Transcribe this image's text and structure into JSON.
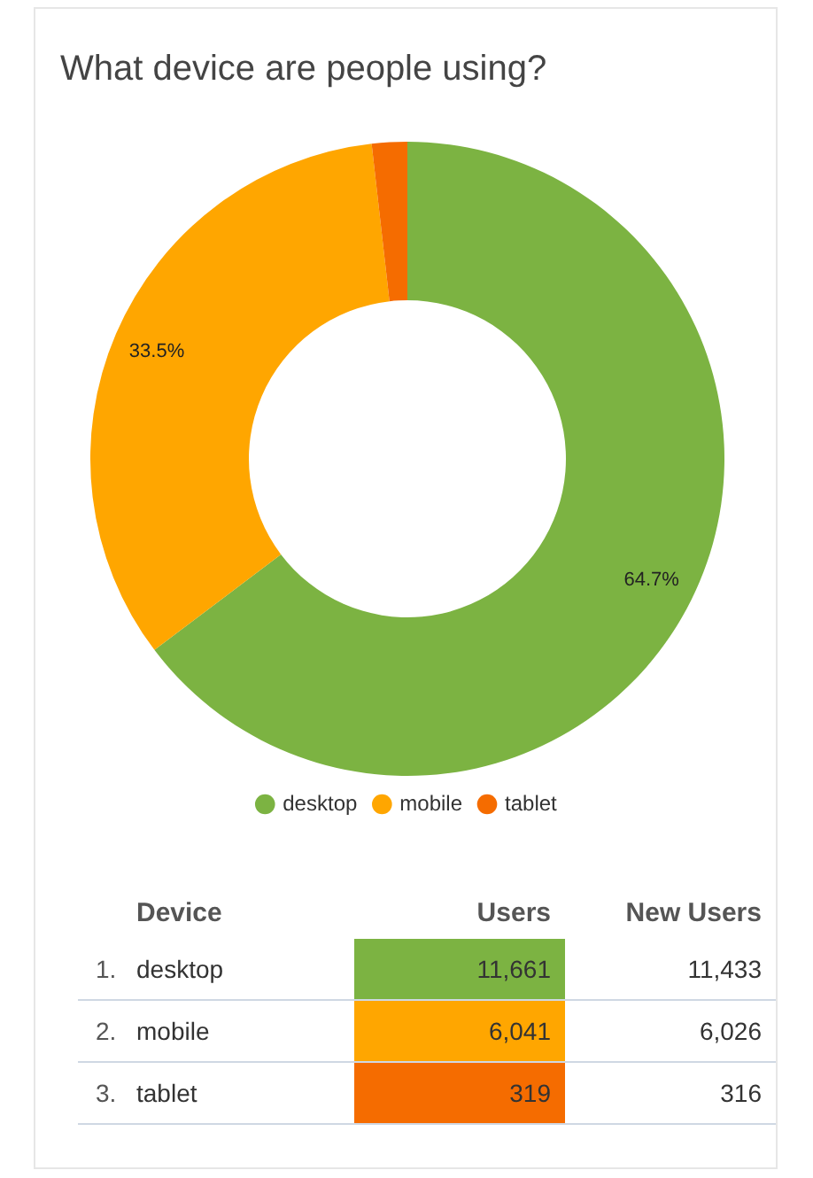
{
  "chart_data": [
    {
      "type": "donut",
      "title": "What device are people using?",
      "categories": [
        "desktop",
        "mobile",
        "tablet"
      ],
      "colors": [
        "#7cb342",
        "#ffa600",
        "#f56c00"
      ],
      "values": [
        64.7,
        33.5,
        1.8
      ],
      "value_labels": [
        "64.7%",
        "33.5%",
        null
      ],
      "legend": "bottom"
    },
    {
      "type": "other",
      "xlabel": "Device",
      "categories": [
        "desktop",
        "mobile",
        "tablet"
      ],
      "annotations": [
        "1.",
        "2.",
        "3."
      ],
      "data_labels": true,
      "series": [
        {
          "name": "Users",
          "colors": [
            "#7cb342",
            "#ffa600",
            "#f56c00"
          ],
          "values": [
            11661,
            6041,
            319
          ],
          "value_labels": [
            "11,661",
            "6,041",
            "319"
          ]
        },
        {
          "name": "New Users",
          "values": [
            11433,
            6026,
            316
          ],
          "value_labels": [
            "11,433",
            "6,026",
            "316"
          ]
        }
      ]
    }
  ]
}
